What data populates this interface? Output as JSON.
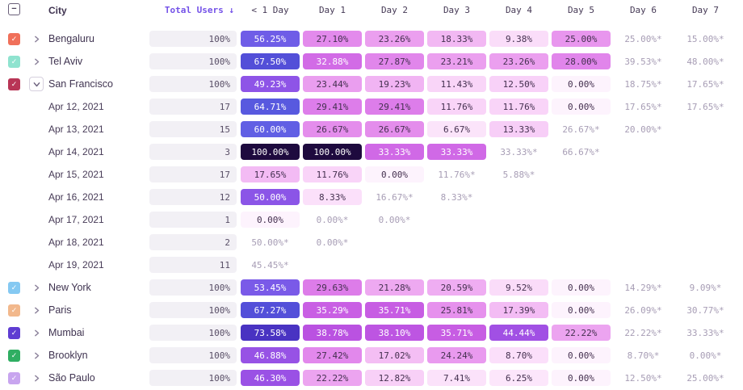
{
  "accent_color": "#7452e8",
  "header_checkbox_glyph": "−",
  "table": {
    "columns": [
      "City",
      "Total Users ↓",
      "< 1 Day",
      "Day 1",
      "Day 2",
      "Day 3",
      "Day 4",
      "Day 5",
      "Day 6",
      "Day 7"
    ],
    "rows": [
      {
        "type": "city",
        "label": "Bengaluru",
        "checkbox_color": "#f0705a",
        "expanded": false,
        "total": "100%",
        "cells": [
          "56.25%",
          "27.10%",
          "23.26%",
          "18.33%",
          "9.38%",
          "25.00%",
          "25.00%*",
          "15.00%*"
        ]
      },
      {
        "type": "city",
        "label": "Tel Aviv",
        "checkbox_color": "#8fe3cf",
        "expanded": false,
        "total": "100%",
        "cells": [
          "67.50%",
          "32.88%",
          "27.87%",
          "23.21%",
          "23.26%",
          "28.00%",
          "39.53%*",
          "48.00%*"
        ]
      },
      {
        "type": "city",
        "label": "San Francisco",
        "checkbox_color": "#b83556",
        "expanded": true,
        "total": "100%",
        "cells": [
          "49.23%",
          "23.44%",
          "19.23%",
          "11.43%",
          "12.50%",
          "0.00%",
          "18.75%*",
          "17.65%*"
        ]
      },
      {
        "type": "date",
        "label": "Apr 12, 2021",
        "total": "17",
        "cells": [
          "64.71%",
          "29.41%",
          "29.41%",
          "11.76%",
          "11.76%",
          "0.00%",
          "17.65%*",
          "17.65%*"
        ]
      },
      {
        "type": "date",
        "label": "Apr 13, 2021",
        "total": "15",
        "cells": [
          "60.00%",
          "26.67%",
          "26.67%",
          "6.67%",
          "13.33%",
          "26.67%*",
          "20.00%*",
          ""
        ]
      },
      {
        "type": "date",
        "label": "Apr 14, 2021",
        "total": "3",
        "cells": [
          "100.00%",
          "100.00%",
          "33.33%",
          "33.33%",
          "33.33%*",
          "66.67%*",
          "",
          ""
        ]
      },
      {
        "type": "date",
        "label": "Apr 15, 2021",
        "total": "17",
        "cells": [
          "17.65%",
          "11.76%",
          "0.00%",
          "11.76%*",
          "5.88%*",
          "",
          "",
          ""
        ]
      },
      {
        "type": "date",
        "label": "Apr 16, 2021",
        "total": "12",
        "cells": [
          "50.00%",
          "8.33%",
          "16.67%*",
          "8.33%*",
          "",
          "",
          "",
          ""
        ]
      },
      {
        "type": "date",
        "label": "Apr 17, 2021",
        "total": "1",
        "cells": [
          "0.00%",
          "0.00%*",
          "0.00%*",
          "",
          "",
          "",
          "",
          ""
        ]
      },
      {
        "type": "date",
        "label": "Apr 18, 2021",
        "total": "2",
        "cells": [
          "50.00%*",
          "0.00%*",
          "",
          "",
          "",
          "",
          "",
          ""
        ]
      },
      {
        "type": "date",
        "label": "Apr 19, 2021",
        "total": "11",
        "cells": [
          "45.45%*",
          "",
          "",
          "",
          "",
          "",
          "",
          ""
        ]
      },
      {
        "type": "city",
        "label": "New York",
        "checkbox_color": "#85c9f2",
        "expanded": false,
        "total": "100%",
        "cells": [
          "53.45%",
          "29.63%",
          "21.28%",
          "20.59%",
          "9.52%",
          "0.00%",
          "14.29%*",
          "9.09%*"
        ]
      },
      {
        "type": "city",
        "label": "Paris",
        "checkbox_color": "#f2b88c",
        "expanded": false,
        "total": "100%",
        "cells": [
          "67.27%",
          "35.29%",
          "35.71%",
          "25.81%",
          "17.39%",
          "0.00%",
          "26.09%*",
          "30.77%*"
        ]
      },
      {
        "type": "city",
        "label": "Mumbai",
        "checkbox_color": "#5f3dd2",
        "expanded": false,
        "total": "100%",
        "cells": [
          "73.58%",
          "38.78%",
          "38.10%",
          "35.71%",
          "44.44%",
          "22.22%",
          "22.22%*",
          "33.33%*"
        ]
      },
      {
        "type": "city",
        "label": "Brooklyn",
        "checkbox_color": "#2fae62",
        "expanded": false,
        "total": "100%",
        "cells": [
          "46.88%",
          "27.42%",
          "17.02%",
          "24.24%",
          "8.70%",
          "0.00%",
          "8.70%*",
          "0.00%*"
        ]
      },
      {
        "type": "city",
        "label": "São Paulo",
        "checkbox_color": "#c8a5ef",
        "expanded": false,
        "total": "100%",
        "cells": [
          "46.30%",
          "22.22%",
          "12.82%",
          "7.41%",
          "6.25%",
          "0.00%",
          "12.50%*",
          "25.00%*"
        ]
      }
    ]
  }
}
